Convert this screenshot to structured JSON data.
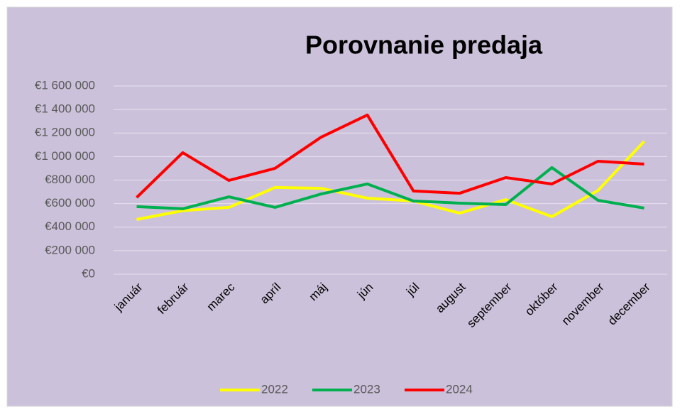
{
  "chart_data": {
    "type": "line",
    "title": "Porovnanie predaja",
    "categories": [
      "január",
      "február",
      "marec",
      "apríl",
      "máj",
      "jún",
      "júl",
      "august",
      "september",
      "október",
      "november",
      "december"
    ],
    "series": [
      {
        "name": "2022",
        "color": "#ffff00",
        "values": [
          465000,
          540000,
          568000,
          737000,
          730000,
          646000,
          622000,
          519000,
          634000,
          489000,
          712000,
          1129000
        ]
      },
      {
        "name": "2023",
        "color": "#00b050",
        "values": [
          574000,
          556000,
          658000,
          568000,
          682000,
          767000,
          622000,
          604000,
          592000,
          906000,
          628000,
          562000
        ]
      },
      {
        "name": "2024",
        "color": "#ff0000",
        "values": [
          652000,
          1033000,
          797000,
          900000,
          1165000,
          1353000,
          707000,
          688000,
          821000,
          767000,
          960000,
          936000
        ]
      }
    ],
    "ylim": [
      0,
      1600000
    ],
    "yticks": [
      {
        "value": 0,
        "label": "€0"
      },
      {
        "value": 200000,
        "label": "€200 000"
      },
      {
        "value": 400000,
        "label": "€400 000"
      },
      {
        "value": 600000,
        "label": "€600 000"
      },
      {
        "value": 800000,
        "label": "€800 000"
      },
      {
        "value": 1000000,
        "label": "€1 000 000"
      },
      {
        "value": 1200000,
        "label": "€1 200 000"
      },
      {
        "value": 1400000,
        "label": "€1 400 000"
      },
      {
        "value": 1600000,
        "label": "€1 600 000"
      }
    ],
    "grid": true,
    "legend": "bottom"
  }
}
